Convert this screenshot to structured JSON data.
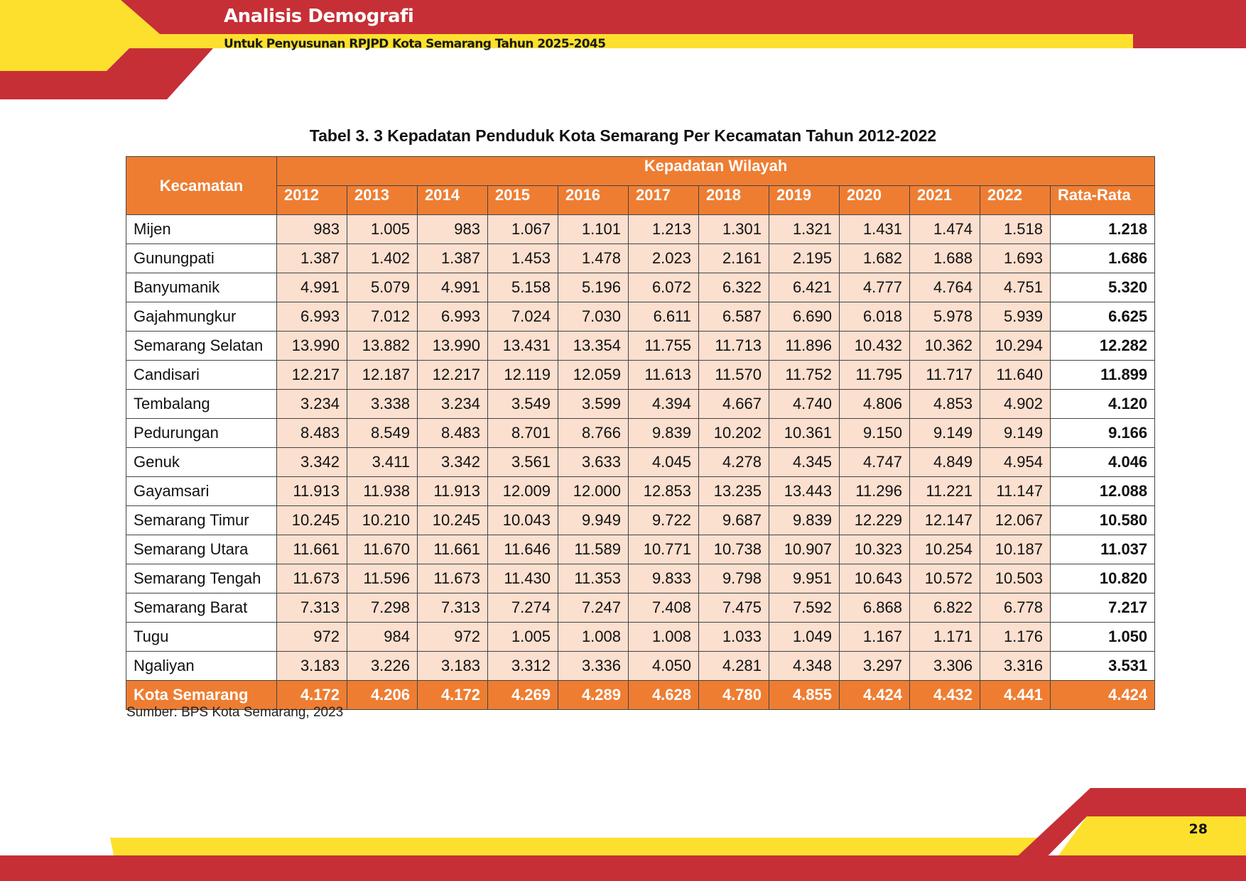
{
  "header": {
    "title": "Analisis Demografi",
    "subtitle": "Untuk Penyusunan RPJPD Kota Semarang Tahun 2025-2045"
  },
  "table": {
    "caption": "Tabel 3. 3 Kepadatan Penduduk Kota Semarang Per Kecamatan Tahun 2012-2022",
    "kecamatan_header": "Kecamatan",
    "group_header": "Kepadatan Wilayah",
    "columns": [
      "2012",
      "2013",
      "2014",
      "2015",
      "2016",
      "2017",
      "2018",
      "2019",
      "2020",
      "2021",
      "2022",
      "Rata-Rata"
    ],
    "rows": [
      {
        "name": "Mijen",
        "values": [
          "983",
          "1.005",
          "983",
          "1.067",
          "1.101",
          "1.213",
          "1.301",
          "1.321",
          "1.431",
          "1.474",
          "1.518"
        ],
        "avg": "1.218"
      },
      {
        "name": "Gunungpati",
        "values": [
          "1.387",
          "1.402",
          "1.387",
          "1.453",
          "1.478",
          "2.023",
          "2.161",
          "2.195",
          "1.682",
          "1.688",
          "1.693"
        ],
        "avg": "1.686"
      },
      {
        "name": "Banyumanik",
        "values": [
          "4.991",
          "5.079",
          "4.991",
          "5.158",
          "5.196",
          "6.072",
          "6.322",
          "6.421",
          "4.777",
          "4.764",
          "4.751"
        ],
        "avg": "5.320"
      },
      {
        "name": "Gajahmungkur",
        "values": [
          "6.993",
          "7.012",
          "6.993",
          "7.024",
          "7.030",
          "6.611",
          "6.587",
          "6.690",
          "6.018",
          "5.978",
          "5.939"
        ],
        "avg": "6.625"
      },
      {
        "name": "Semarang Selatan",
        "values": [
          "13.990",
          "13.882",
          "13.990",
          "13.431",
          "13.354",
          "11.755",
          "11.713",
          "11.896",
          "10.432",
          "10.362",
          "10.294"
        ],
        "avg": "12.282"
      },
      {
        "name": "Candisari",
        "values": [
          "12.217",
          "12.187",
          "12.217",
          "12.119",
          "12.059",
          "11.613",
          "11.570",
          "11.752",
          "11.795",
          "11.717",
          "11.640"
        ],
        "avg": "11.899"
      },
      {
        "name": "Tembalang",
        "values": [
          "3.234",
          "3.338",
          "3.234",
          "3.549",
          "3.599",
          "4.394",
          "4.667",
          "4.740",
          "4.806",
          "4.853",
          "4.902"
        ],
        "avg": "4.120"
      },
      {
        "name": "Pedurungan",
        "values": [
          "8.483",
          "8.549",
          "8.483",
          "8.701",
          "8.766",
          "9.839",
          "10.202",
          "10.361",
          "9.150",
          "9.149",
          "9.149"
        ],
        "avg": "9.166"
      },
      {
        "name": "Genuk",
        "values": [
          "3.342",
          "3.411",
          "3.342",
          "3.561",
          "3.633",
          "4.045",
          "4.278",
          "4.345",
          "4.747",
          "4.849",
          "4.954"
        ],
        "avg": "4.046"
      },
      {
        "name": "Gayamsari",
        "values": [
          "11.913",
          "11.938",
          "11.913",
          "12.009",
          "12.000",
          "12.853",
          "13.235",
          "13.443",
          "11.296",
          "11.221",
          "11.147"
        ],
        "avg": "12.088"
      },
      {
        "name": "Semarang Timur",
        "values": [
          "10.245",
          "10.210",
          "10.245",
          "10.043",
          "9.949",
          "9.722",
          "9.687",
          "9.839",
          "12.229",
          "12.147",
          "12.067"
        ],
        "avg": "10.580"
      },
      {
        "name": "Semarang Utara",
        "values": [
          "11.661",
          "11.670",
          "11.661",
          "11.646",
          "11.589",
          "10.771",
          "10.738",
          "10.907",
          "10.323",
          "10.254",
          "10.187"
        ],
        "avg": "11.037"
      },
      {
        "name": "Semarang Tengah",
        "values": [
          "11.673",
          "11.596",
          "11.673",
          "11.430",
          "11.353",
          "9.833",
          "9.798",
          "9.951",
          "10.643",
          "10.572",
          "10.503"
        ],
        "avg": "10.820"
      },
      {
        "name": "Semarang Barat",
        "values": [
          "7.313",
          "7.298",
          "7.313",
          "7.274",
          "7.247",
          "7.408",
          "7.475",
          "7.592",
          "6.868",
          "6.822",
          "6.778"
        ],
        "avg": "7.217"
      },
      {
        "name": "Tugu",
        "values": [
          "972",
          "984",
          "972",
          "1.005",
          "1.008",
          "1.008",
          "1.033",
          "1.049",
          "1.167",
          "1.171",
          "1.176"
        ],
        "avg": "1.050"
      },
      {
        "name": "Ngaliyan",
        "values": [
          "3.183",
          "3.226",
          "3.183",
          "3.312",
          "3.336",
          "4.050",
          "4.281",
          "4.348",
          "3.297",
          "3.306",
          "3.316"
        ],
        "avg": "3.531"
      }
    ],
    "total": {
      "name": "Kota Semarang",
      "values": [
        "4.172",
        "4.206",
        "4.172",
        "4.269",
        "4.289",
        "4.628",
        "4.780",
        "4.855",
        "4.424",
        "4.432",
        "4.441"
      ],
      "avg": "4.424"
    }
  },
  "source": "Sumber: BPS Kota Semarang, 2023",
  "page_number": "28",
  "colors": {
    "header_red": "#c62f36",
    "header_yellow": "#fde02e",
    "table_orange": "#ee7d32",
    "cell_peach": "#fbdfcf"
  }
}
